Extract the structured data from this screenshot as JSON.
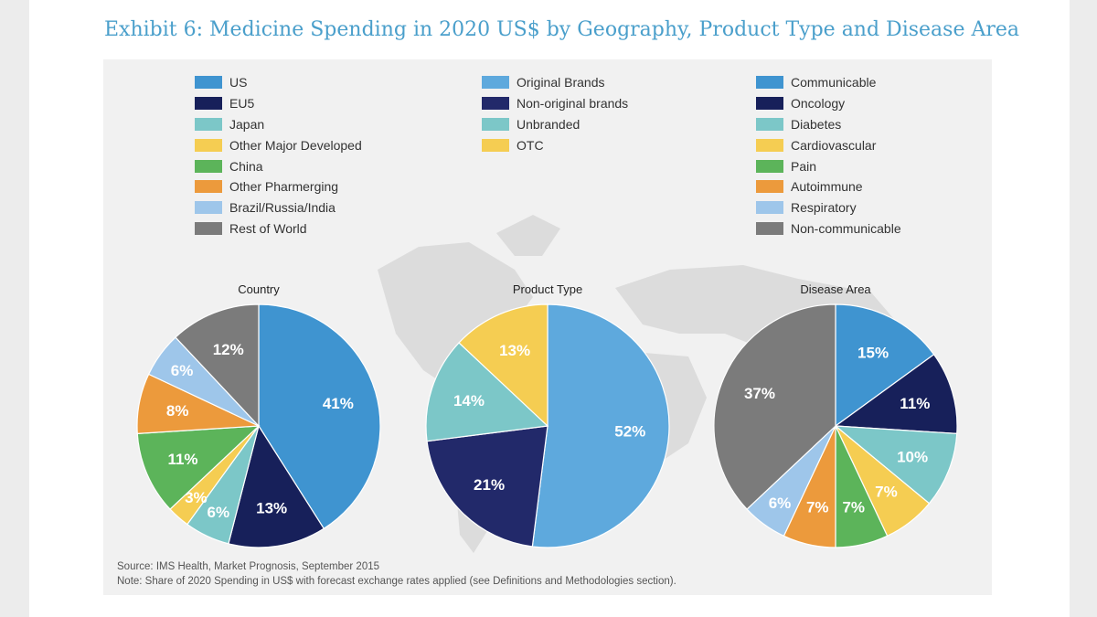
{
  "title": "Exhibit 6: Medicine Spending in 2020 US$ by Geography, Product Type and Disease Area",
  "legends": [
    {
      "items": [
        {
          "label": "US",
          "color": "#3f94d0"
        },
        {
          "label": "EU5",
          "color": "#17205a"
        },
        {
          "label": "Japan",
          "color": "#7cc7c8"
        },
        {
          "label": "Other Major Developed",
          "color": "#f5cd52"
        },
        {
          "label": "China",
          "color": "#5cb45a"
        },
        {
          "label": "Other Pharmerging",
          "color": "#ec9a3c"
        },
        {
          "label": "Brazil/Russia/India",
          "color": "#9ec6ea"
        },
        {
          "label": "Rest of World",
          "color": "#7b7b7b"
        }
      ]
    },
    {
      "items": [
        {
          "label": "Original Brands",
          "color": "#5ea9dd"
        },
        {
          "label": "Non-original brands",
          "color": "#22296a"
        },
        {
          "label": "Unbranded",
          "color": "#7cc7c8"
        },
        {
          "label": "OTC",
          "color": "#f5cd52"
        }
      ]
    },
    {
      "items": [
        {
          "label": "Communicable",
          "color": "#3f94d0"
        },
        {
          "label": "Oncology",
          "color": "#17205a"
        },
        {
          "label": "Diabetes",
          "color": "#7cc7c8"
        },
        {
          "label": "Cardiovascular",
          "color": "#f5cd52"
        },
        {
          "label": "Pain",
          "color": "#5cb45a"
        },
        {
          "label": "Autoimmune",
          "color": "#ec9a3c"
        },
        {
          "label": "Respiratory",
          "color": "#9ec6ea"
        },
        {
          "label": "Non-communicable",
          "color": "#7b7b7b"
        }
      ]
    }
  ],
  "chart_data": [
    {
      "type": "pie",
      "title": "Country",
      "slices": [
        {
          "name": "US",
          "value": 41,
          "label": "41%",
          "color": "#3f94d0"
        },
        {
          "name": "EU5",
          "value": 13,
          "label": "13%",
          "color": "#17205a"
        },
        {
          "name": "Japan",
          "value": 6,
          "label": "6%",
          "color": "#7cc7c8"
        },
        {
          "name": "Other Major Developed",
          "value": 3,
          "label": "3%",
          "color": "#f5cd52"
        },
        {
          "name": "China",
          "value": 11,
          "label": "11%",
          "color": "#5cb45a"
        },
        {
          "name": "Other Pharmerging",
          "value": 8,
          "label": "8%",
          "color": "#ec9a3c"
        },
        {
          "name": "Brazil/Russia/India",
          "value": 6,
          "label": "6%",
          "color": "#9ec6ea"
        },
        {
          "name": "Rest of World",
          "value": 12,
          "label": "12%",
          "color": "#7b7b7b"
        }
      ]
    },
    {
      "type": "pie",
      "title": "Product Type",
      "slices": [
        {
          "name": "Original Brands",
          "value": 52,
          "label": "52%",
          "color": "#5ea9dd"
        },
        {
          "name": "Non-original brands",
          "value": 21,
          "label": "21%",
          "color": "#22296a"
        },
        {
          "name": "Unbranded",
          "value": 14,
          "label": "14%",
          "color": "#7cc7c8"
        },
        {
          "name": "OTC",
          "value": 13,
          "label": "13%",
          "color": "#f5cd52"
        }
      ]
    },
    {
      "type": "pie",
      "title": "Disease Area",
      "slices": [
        {
          "name": "Communicable",
          "value": 15,
          "label": "15%",
          "color": "#3f94d0"
        },
        {
          "name": "Oncology",
          "value": 11,
          "label": "11%",
          "color": "#17205a"
        },
        {
          "name": "Diabetes",
          "value": 10,
          "label": "10%",
          "color": "#7cc7c8"
        },
        {
          "name": "Cardiovascular",
          "value": 7,
          "label": "7%",
          "color": "#f5cd52"
        },
        {
          "name": "Pain",
          "value": 7,
          "label": "7%",
          "color": "#5cb45a"
        },
        {
          "name": "Autoimmune",
          "value": 7,
          "label": "7%",
          "color": "#ec9a3c"
        },
        {
          "name": "Respiratory",
          "value": 6,
          "label": "6%",
          "color": "#9ec6ea"
        },
        {
          "name": "Non-communicable",
          "value": 37,
          "label": "37%",
          "color": "#7b7b7b"
        }
      ]
    }
  ],
  "source": "Source: IMS Health, Market Prognosis, September 2015",
  "note": "Note: Share of 2020 Spending in US$ with forecast exchange rates applied (see Definitions and Methodologies section)."
}
